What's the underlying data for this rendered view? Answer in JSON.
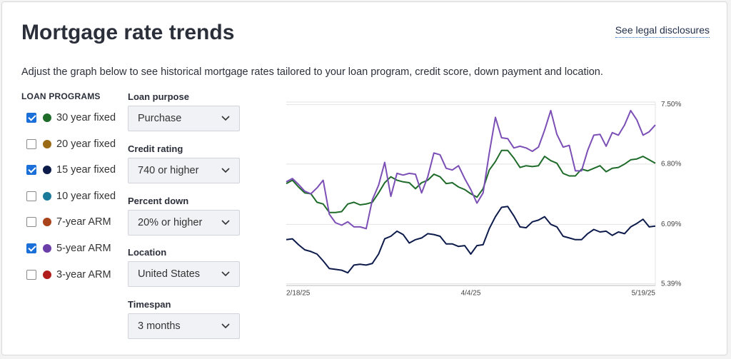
{
  "header": {
    "title": "Mortgage rate trends",
    "link": "See legal disclosures",
    "description": "Adjust the graph below to see historical mortgage rates tailored to your loan program, credit score, down payment and location."
  },
  "loan_programs": {
    "heading": "LOAN PROGRAMS",
    "options": [
      {
        "label": "30 year fixed",
        "color": "#1e6b2a",
        "checked": true
      },
      {
        "label": "20 year fixed",
        "color": "#9a6a14",
        "checked": false
      },
      {
        "label": "15 year fixed",
        "color": "#0d1b4b",
        "checked": true
      },
      {
        "label": "10 year fixed",
        "color": "#1b7a9a",
        "checked": false
      },
      {
        "label": "7-year ARM",
        "color": "#a8431a",
        "checked": false
      },
      {
        "label": "5-year ARM",
        "color": "#6b3fa8",
        "checked": true
      },
      {
        "label": "3-year ARM",
        "color": "#b01c1c",
        "checked": false
      }
    ]
  },
  "filters": [
    {
      "label": "Loan purpose",
      "value": "Purchase"
    },
    {
      "label": "Credit rating",
      "value": "740 or higher"
    },
    {
      "label": "Percent down",
      "value": "20% or higher"
    },
    {
      "label": "Location",
      "value": "United States"
    },
    {
      "label": "Timespan",
      "value": "3 months"
    }
  ],
  "chart_data": {
    "type": "line",
    "categories": [
      "2/18/25",
      null,
      null,
      null,
      null,
      null,
      null,
      null,
      null,
      null,
      null,
      null,
      null,
      null,
      null,
      null,
      null,
      null,
      null,
      null,
      null,
      null,
      null,
      null,
      null,
      null,
      null,
      null,
      null,
      null,
      "4/4/25",
      null,
      null,
      null,
      null,
      null,
      null,
      null,
      null,
      null,
      null,
      null,
      null,
      null,
      null,
      null,
      null,
      null,
      null,
      null,
      null,
      null,
      null,
      null,
      null,
      null,
      null,
      null,
      null,
      null,
      "5/19/25"
    ],
    "ylim": [
      5.37,
      7.53
    ],
    "yticks": [
      {
        "value": 5.39,
        "label": "5.39%"
      },
      {
        "value": 6.09,
        "label": "6.09%"
      },
      {
        "value": 6.8,
        "label": "6.80%"
      },
      {
        "value": 7.5,
        "label": "7.50%"
      }
    ],
    "grid": true,
    "series": [
      {
        "color": "#1e6b2a",
        "values": [
          6.57,
          6.61,
          6.53,
          6.46,
          6.45,
          6.35,
          6.33,
          6.23,
          6.23,
          6.24,
          6.33,
          6.35,
          6.32,
          6.33,
          6.35,
          6.46,
          6.58,
          6.65,
          6.61,
          6.59,
          6.58,
          6.51,
          6.58,
          6.61,
          6.68,
          6.65,
          6.57,
          6.58,
          6.53,
          6.5,
          6.45,
          6.41,
          6.51,
          6.73,
          6.83,
          6.96,
          6.96,
          6.87,
          6.76,
          6.78,
          6.77,
          6.78,
          6.89,
          6.84,
          6.81,
          6.69,
          6.66,
          6.66,
          6.74,
          6.72,
          6.75,
          6.78,
          6.71,
          6.75,
          6.76,
          6.8,
          6.85,
          6.86,
          6.89,
          6.85,
          6.81
        ]
      },
      {
        "color": "#0d1b4b",
        "values": [
          5.91,
          5.92,
          5.85,
          5.79,
          5.77,
          5.74,
          5.66,
          5.57,
          5.56,
          5.55,
          5.52,
          5.61,
          5.62,
          5.61,
          5.63,
          5.74,
          5.92,
          5.95,
          6.01,
          5.97,
          5.87,
          5.91,
          5.93,
          5.98,
          5.97,
          5.95,
          5.86,
          5.86,
          5.83,
          5.84,
          5.74,
          5.84,
          5.85,
          6.04,
          6.18,
          6.29,
          6.3,
          6.19,
          6.06,
          6.05,
          6.12,
          6.14,
          6.18,
          6.09,
          6.06,
          5.95,
          5.93,
          5.91,
          5.91,
          5.98,
          6.03,
          6.0,
          6.01,
          5.96,
          6.0,
          5.98,
          6.06,
          6.1,
          6.15,
          6.06,
          6.07
        ]
      },
      {
        "color": "#7b4fb5",
        "values": [
          6.59,
          6.63,
          6.56,
          6.48,
          6.45,
          6.52,
          6.61,
          6.21,
          6.11,
          6.08,
          6.12,
          6.06,
          6.06,
          6.04,
          6.38,
          6.55,
          6.82,
          6.42,
          6.69,
          6.67,
          6.69,
          6.68,
          6.46,
          6.65,
          6.93,
          6.91,
          6.75,
          6.73,
          6.78,
          6.63,
          6.5,
          6.34,
          6.46,
          6.93,
          7.35,
          7.11,
          7.1,
          6.99,
          7.01,
          6.99,
          6.95,
          7.0,
          7.2,
          7.43,
          7.15,
          7.0,
          7.02,
          6.72,
          6.72,
          6.96,
          7.14,
          7.15,
          7.01,
          7.17,
          7.14,
          7.26,
          7.43,
          7.32,
          7.14,
          7.18,
          7.26
        ]
      }
    ]
  }
}
